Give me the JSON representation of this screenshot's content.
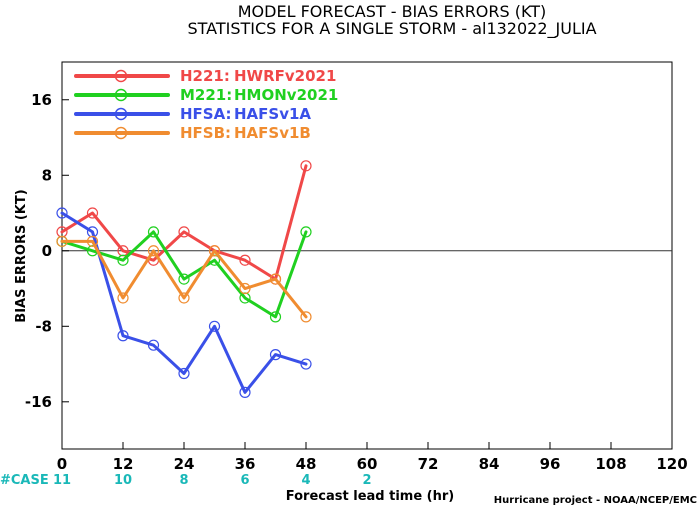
{
  "chart_data": {
    "type": "line",
    "title": "MODEL FORECAST - BIAS ERRORS (KT)",
    "subtitle": "STATISTICS FOR A SINGLE STORM - al132022_JULIA",
    "xlabel": "Forecast lead time (hr)",
    "ylabel": "BIAS ERRORS (KT)",
    "xlim": [
      0,
      120
    ],
    "ylim": [
      -21,
      20
    ],
    "x_ticks": [
      0,
      12,
      24,
      36,
      48,
      60,
      72,
      84,
      96,
      108,
      120
    ],
    "y_ticks": [
      16,
      8,
      0,
      -8,
      -16
    ],
    "zero_line": true,
    "legend_position": "top-left",
    "case_label": "#CASE",
    "case_counts": [
      {
        "x": 0,
        "n": "11"
      },
      {
        "x": 12,
        "n": "10"
      },
      {
        "x": 24,
        "n": "8"
      },
      {
        "x": 36,
        "n": "6"
      },
      {
        "x": 48,
        "n": "4"
      },
      {
        "x": 60,
        "n": "2"
      }
    ],
    "credit": "Hurricane project - NOAA/NCEP/EMC",
    "series": [
      {
        "name": "H221:",
        "model": "HWRFv2021",
        "color": "#f04848",
        "x": [
          0,
          6,
          12,
          18,
          24,
          30,
          36,
          42,
          48
        ],
        "values": [
          2,
          4,
          0,
          -1,
          2,
          0,
          -1,
          -3,
          9
        ]
      },
      {
        "name": "M221:",
        "model": "HMONv2021",
        "color": "#20d020",
        "x": [
          0,
          6,
          12,
          18,
          24,
          30,
          36,
          42,
          48
        ],
        "values": [
          1,
          0,
          -1,
          2,
          -3,
          -1,
          -5,
          -7,
          2
        ]
      },
      {
        "name": "HFSA:",
        "model": "HAFSv1A",
        "color": "#3a50e8",
        "x": [
          0,
          6,
          12,
          18,
          24,
          30,
          36,
          42,
          48
        ],
        "values": [
          4,
          2,
          -9,
          -10,
          -13,
          -8,
          -15,
          -11,
          -12
        ]
      },
      {
        "name": "HFSB:",
        "model": "HAFSv1B",
        "color": "#f08c30",
        "x": [
          0,
          6,
          12,
          18,
          24,
          30,
          36,
          42,
          48
        ],
        "values": [
          1,
          1,
          -5,
          0,
          -5,
          0,
          -4,
          -3,
          -7
        ]
      }
    ]
  }
}
